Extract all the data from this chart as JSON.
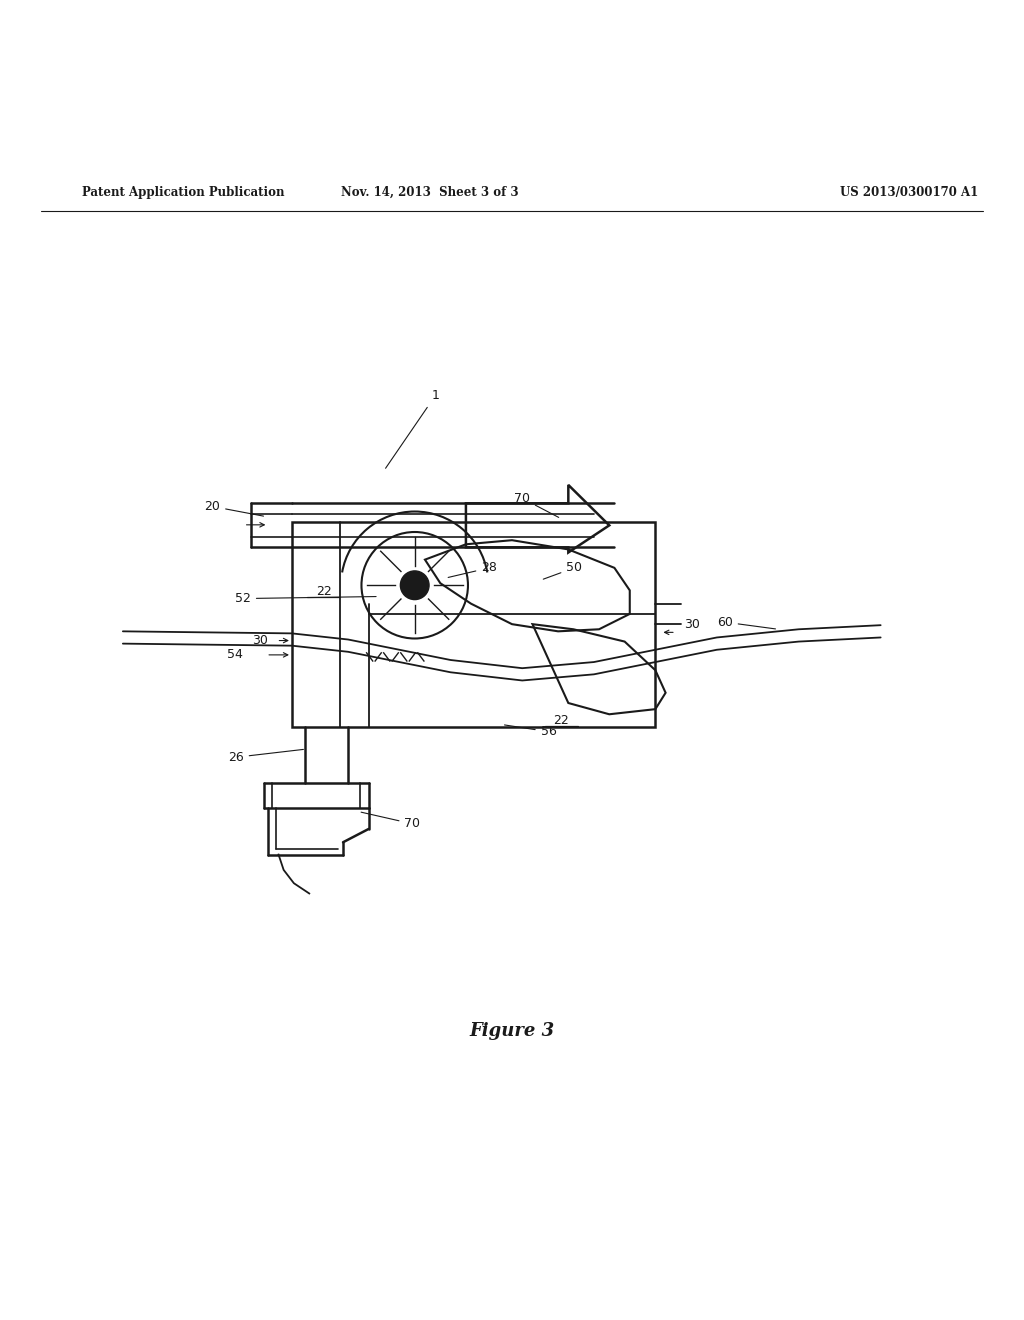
{
  "title_left": "Patent Application Publication",
  "title_mid": "Nov. 14, 2013  Sheet 3 of 3",
  "title_right": "US 2013/0300170 A1",
  "figure_label": "Figure 3",
  "bg_color": "#ffffff",
  "line_color": "#1a1a1a",
  "label_color": "#1a1a1a"
}
